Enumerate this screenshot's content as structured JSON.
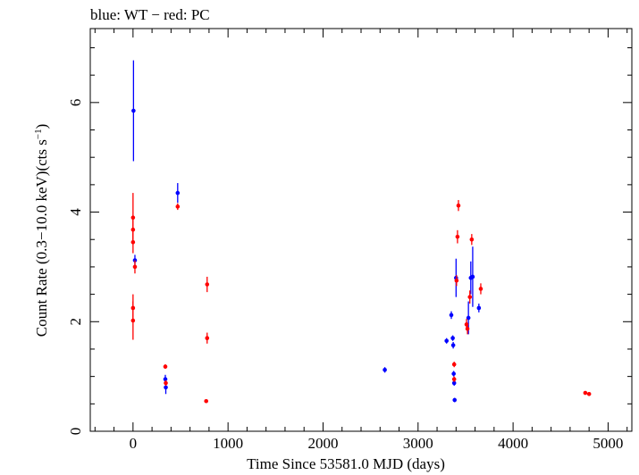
{
  "chart_data": {
    "type": "scatter",
    "title": "blue: WT − red: PC",
    "xlabel": "Time Since 53581.0 MJD (days)",
    "ylabel_main": "Count Rate (0.3−10.0 keV)(cts s",
    "ylabel_sup": "−1",
    "ylabel_close": ")",
    "xlim": [
      -450,
      5250
    ],
    "ylim": [
      0,
      7.35
    ],
    "xticks": [
      0,
      1000,
      2000,
      3000,
      4000,
      5000
    ],
    "yticks": [
      0,
      2,
      4,
      6
    ],
    "grid": false,
    "series": [
      {
        "name": "WT",
        "color": "#0000ff",
        "points": [
          {
            "x": 5,
            "y": 5.85,
            "yerr": 0.92
          },
          {
            "x": 20,
            "y": 3.12,
            "yerr": 0.1
          },
          {
            "x": 340,
            "y": 0.95,
            "yerr": 0.08
          },
          {
            "x": 345,
            "y": 0.8,
            "yerr": 0.12
          },
          {
            "x": 470,
            "y": 4.35,
            "yerr": 0.18
          },
          {
            "x": 2650,
            "y": 1.12,
            "yerr": 0.05
          },
          {
            "x": 3300,
            "y": 1.65,
            "yerr": 0.05
          },
          {
            "x": 3350,
            "y": 2.12,
            "yerr": 0.07
          },
          {
            "x": 3365,
            "y": 1.7,
            "yerr": 0.05
          },
          {
            "x": 3370,
            "y": 1.57,
            "yerr": 0.06
          },
          {
            "x": 3375,
            "y": 1.05,
            "yerr": 0.05
          },
          {
            "x": 3380,
            "y": 0.88,
            "yerr": 0.05
          },
          {
            "x": 3385,
            "y": 0.57,
            "yerr": 0.04
          },
          {
            "x": 3400,
            "y": 2.8,
            "yerr": 0.35
          },
          {
            "x": 3530,
            "y": 2.07,
            "yerr": 0.3
          },
          {
            "x": 3555,
            "y": 2.8,
            "yerr": 0.3
          },
          {
            "x": 3575,
            "y": 2.82,
            "yerr": 0.55
          },
          {
            "x": 3640,
            "y": 2.25,
            "yerr": 0.08
          }
        ]
      },
      {
        "name": "PC",
        "color": "#ff0000",
        "points": [
          {
            "x": 0,
            "y": 3.9,
            "yerr": 0.45
          },
          {
            "x": 0,
            "y": 3.68,
            "yerr": 0.2
          },
          {
            "x": 0,
            "y": 3.45,
            "yerr": 0.2
          },
          {
            "x": 0,
            "y": 2.25,
            "yerr": 0.25
          },
          {
            "x": 0,
            "y": 2.02,
            "yerr": 0.35
          },
          {
            "x": 20,
            "y": 3.0,
            "yerr": 0.12
          },
          {
            "x": 340,
            "y": 1.18,
            "yerr": 0.04
          },
          {
            "x": 345,
            "y": 0.88,
            "yerr": 0.05
          },
          {
            "x": 470,
            "y": 4.1,
            "yerr": 0.06
          },
          {
            "x": 770,
            "y": 0.55,
            "yerr": 0.03
          },
          {
            "x": 780,
            "y": 2.68,
            "yerr": 0.14
          },
          {
            "x": 780,
            "y": 1.7,
            "yerr": 0.1
          },
          {
            "x": 3380,
            "y": 1.22,
            "yerr": 0.05
          },
          {
            "x": 3380,
            "y": 0.95,
            "yerr": 0.05
          },
          {
            "x": 3405,
            "y": 2.75,
            "yerr": 0.1
          },
          {
            "x": 3415,
            "y": 3.55,
            "yerr": 0.12
          },
          {
            "x": 3425,
            "y": 4.12,
            "yerr": 0.1
          },
          {
            "x": 3510,
            "y": 1.95,
            "yerr": 0.1
          },
          {
            "x": 3520,
            "y": 1.87,
            "yerr": 0.1
          },
          {
            "x": 3545,
            "y": 2.45,
            "yerr": 0.12
          },
          {
            "x": 3565,
            "y": 3.5,
            "yerr": 0.1
          },
          {
            "x": 3660,
            "y": 2.6,
            "yerr": 0.1
          },
          {
            "x": 4760,
            "y": 0.7,
            "yerr": 0.03
          },
          {
            "x": 4800,
            "y": 0.68,
            "yerr": 0.03
          }
        ]
      }
    ]
  }
}
